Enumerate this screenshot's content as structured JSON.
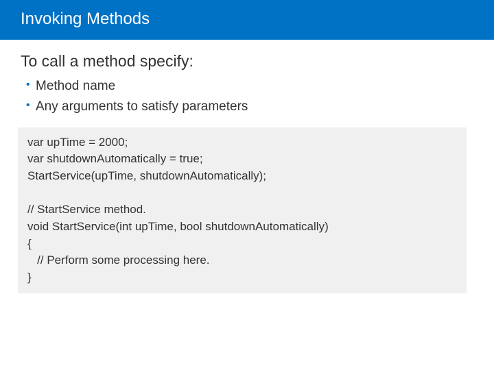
{
  "header": {
    "title": "Invoking Methods"
  },
  "content": {
    "intro": "To call a method specify:",
    "bullets": [
      "Method name",
      "Any arguments to satisfy parameters"
    ],
    "code": "var upTime = 2000;\nvar shutdownAutomatically = true;\nStartService(upTime, shutdownAutomatically);\n\n// StartService method.\nvoid StartService(int upTime, bool shutdownAutomatically)\n{\n   // Perform some processing here.\n}"
  },
  "colors": {
    "header_bg": "#0072c6",
    "header_text": "#ffffff",
    "body_bg": "#ffffff",
    "text": "#333333",
    "bullet": "#0072c6",
    "code_bg": "#f0f0f0"
  }
}
